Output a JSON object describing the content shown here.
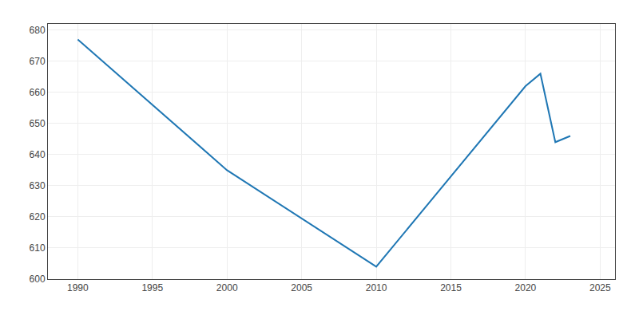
{
  "chart_data": {
    "type": "line",
    "x": [
      1990,
      2000,
      2010,
      2020,
      2021,
      2022,
      2023
    ],
    "values": [
      677,
      635,
      604,
      662,
      666,
      644,
      646
    ],
    "xlim": [
      1988,
      2026
    ],
    "ylim": [
      600,
      682
    ],
    "xticks": [
      1990,
      1995,
      2000,
      2005,
      2010,
      2015,
      2020,
      2025
    ],
    "yticks": [
      600,
      610,
      620,
      630,
      640,
      650,
      660,
      670,
      680
    ],
    "grid": true
  }
}
